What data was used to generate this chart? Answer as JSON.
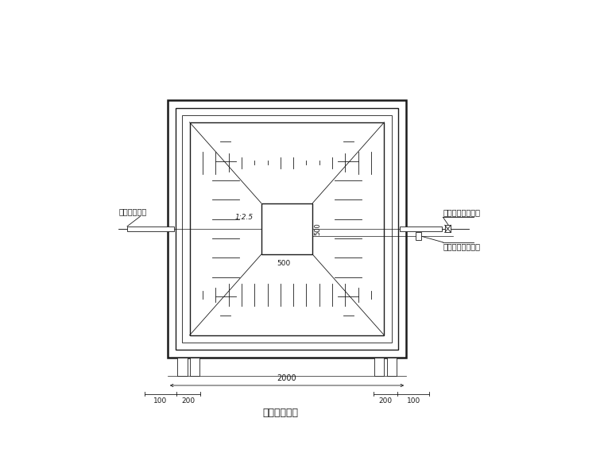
{
  "bg_color": "#ffffff",
  "line_color": "#1a1a1a",
  "title": "粗滤池平面图",
  "label_left": "粗滤池进水管",
  "label_right_top": "上层粗滤池出水管",
  "label_right_bot": "下层粗滤池排污管",
  "dim_2000": "2000",
  "dim_200_left": "200",
  "dim_200_right": "200",
  "dim_100_left": "100",
  "dim_100_right": "100",
  "dim_500_horiz": "500",
  "dim_500_vert": "500",
  "dim_125": "1:2.5"
}
